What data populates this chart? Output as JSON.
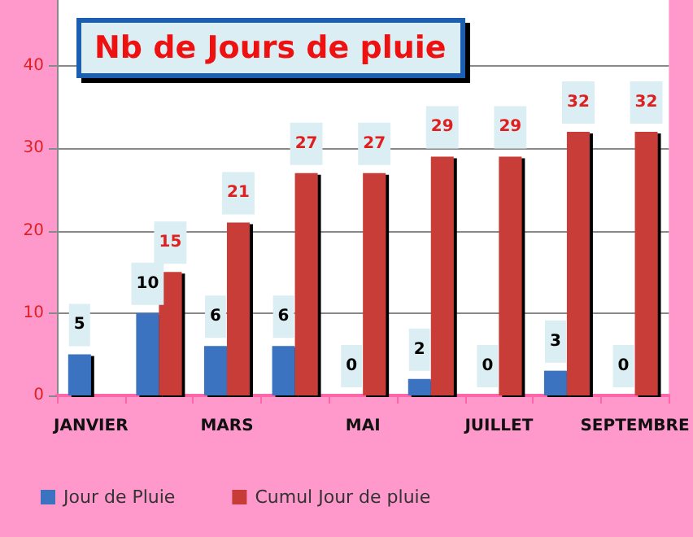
{
  "chart_data": {
    "type": "bar",
    "title": "Nb de Jours de pluie",
    "categories": [
      "JANVIER",
      null,
      "MARS",
      null,
      "MAI",
      null,
      "JUILLET",
      null,
      "SEPTEMBRE"
    ],
    "series": [
      {
        "name": "Jour de Pluie",
        "color": "#3b73c0",
        "values": [
          5,
          10,
          6,
          6,
          0,
          2,
          0,
          3,
          0
        ]
      },
      {
        "name": "Cumul Jour de pluie",
        "color": "#c83c38",
        "values": [
          null,
          15,
          21,
          27,
          27,
          29,
          29,
          32,
          32
        ]
      }
    ],
    "ylim": [
      0,
      48
    ],
    "yticks": [
      0,
      10,
      20,
      30,
      40
    ],
    "grid": "y",
    "legend": "bottom left",
    "data_labels": true
  }
}
